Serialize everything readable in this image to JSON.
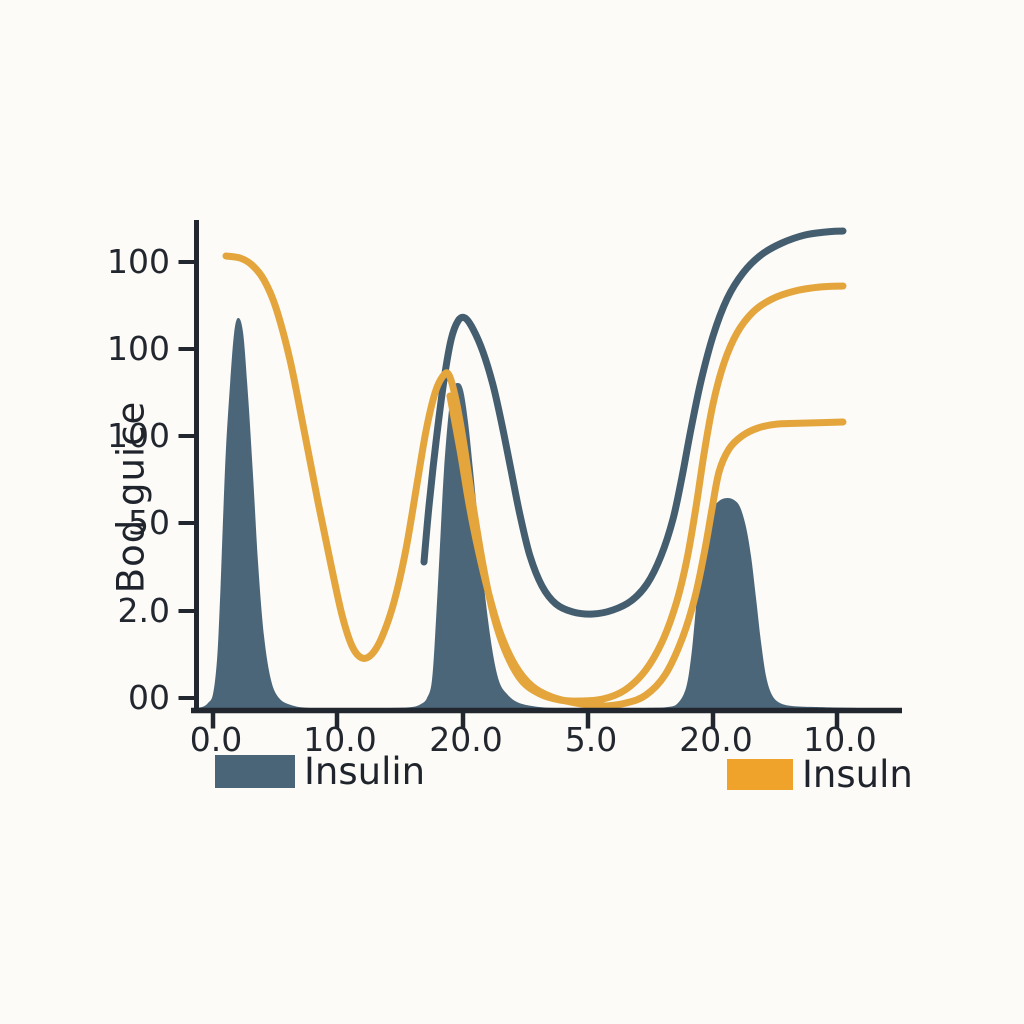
{
  "page": {
    "background": "#fcfbf7"
  },
  "chart_data": {
    "type": "area",
    "title": "",
    "ylabel": "Bod guice",
    "xlabel": "",
    "y_tick_labels": [
      "100",
      "100",
      "100",
      "50",
      "2.0",
      "00"
    ],
    "x_tick_labels": [
      "0.0",
      "10.0",
      "20.0",
      "5.0",
      "20.0",
      "10.0"
    ],
    "axis_color": "#22262e",
    "grid": false,
    "legend_position": "below-axis",
    "legend": [
      {
        "label": "Insulin",
        "swatch_color": "#4a6578"
      },
      {
        "label": "Insuln",
        "swatch_color": "#f0a32b"
      }
    ],
    "series": [
      {
        "name": "insulin-filled-area",
        "kind": "area",
        "color": "#4b6679",
        "points": [
          [
            193,
            708
          ],
          [
            202,
            707
          ],
          [
            208,
            703
          ],
          [
            213,
            694
          ],
          [
            217,
            660
          ],
          [
            220,
            600
          ],
          [
            223,
            520
          ],
          [
            226,
            448
          ],
          [
            230,
            385
          ],
          [
            234,
            334
          ],
          [
            238,
            318
          ],
          [
            243,
            332
          ],
          [
            248,
            395
          ],
          [
            253,
            475
          ],
          [
            258,
            562
          ],
          [
            264,
            636
          ],
          [
            271,
            680
          ],
          [
            279,
            698
          ],
          [
            291,
            705
          ],
          [
            310,
            708
          ],
          [
            350,
            708
          ],
          [
            390,
            708
          ],
          [
            412,
            707
          ],
          [
            421,
            704
          ],
          [
            427,
            698
          ],
          [
            432,
            680
          ],
          [
            436,
            620
          ],
          [
            440,
            545
          ],
          [
            444,
            470
          ],
          [
            449,
            410
          ],
          [
            453,
            388
          ],
          [
            458,
            383
          ],
          [
            463,
            390
          ],
          [
            468,
            422
          ],
          [
            473,
            470
          ],
          [
            479,
            532
          ],
          [
            485,
            595
          ],
          [
            492,
            648
          ],
          [
            499,
            681
          ],
          [
            507,
            694
          ],
          [
            517,
            702
          ],
          [
            532,
            706
          ],
          [
            555,
            708
          ],
          [
            600,
            708
          ],
          [
            645,
            708
          ],
          [
            668,
            707
          ],
          [
            678,
            703
          ],
          [
            686,
            688
          ],
          [
            691,
            658
          ],
          [
            695,
            618
          ],
          [
            699,
            575
          ],
          [
            704,
            538
          ],
          [
            711,
            512
          ],
          [
            719,
            501
          ],
          [
            727,
            498
          ],
          [
            734,
            500
          ],
          [
            740,
            507
          ],
          [
            746,
            527
          ],
          [
            751,
            556
          ],
          [
            756,
            598
          ],
          [
            761,
            642
          ],
          [
            766,
            676
          ],
          [
            772,
            695
          ],
          [
            780,
            703
          ],
          [
            792,
            706
          ],
          [
            815,
            707
          ],
          [
            860,
            708
          ],
          [
            900,
            708
          ]
        ]
      },
      {
        "name": "dark-blue-line",
        "kind": "line",
        "color": "#445e70",
        "width": 7,
        "points": [
          [
            424,
            562
          ],
          [
            429,
            506
          ],
          [
            436,
            442
          ],
          [
            444,
            380
          ],
          [
            451,
            340
          ],
          [
            458,
            321
          ],
          [
            465,
            318
          ],
          [
            473,
            329
          ],
          [
            483,
            352
          ],
          [
            493,
            385
          ],
          [
            502,
            425
          ],
          [
            511,
            470
          ],
          [
            520,
            515
          ],
          [
            530,
            556
          ],
          [
            542,
            586
          ],
          [
            556,
            604
          ],
          [
            573,
            612
          ],
          [
            593,
            614
          ],
          [
            613,
            610
          ],
          [
            631,
            601
          ],
          [
            647,
            584
          ],
          [
            661,
            556
          ],
          [
            673,
            519
          ],
          [
            682,
            477
          ],
          [
            691,
            429
          ],
          [
            701,
            381
          ],
          [
            713,
            336
          ],
          [
            727,
            299
          ],
          [
            743,
            273
          ],
          [
            761,
            255
          ],
          [
            782,
            243
          ],
          [
            805,
            235
          ],
          [
            826,
            232
          ],
          [
            843,
            231
          ]
        ]
      },
      {
        "name": "orange-line-upper",
        "kind": "line",
        "color": "#e3a53c",
        "width": 7,
        "points": [
          [
            226,
            256
          ],
          [
            240,
            258
          ],
          [
            252,
            265
          ],
          [
            264,
            280
          ],
          [
            276,
            308
          ],
          [
            290,
            360
          ],
          [
            304,
            430
          ],
          [
            318,
            502
          ],
          [
            331,
            565
          ],
          [
            342,
            615
          ],
          [
            352,
            646
          ],
          [
            362,
            658
          ],
          [
            372,
            654
          ],
          [
            382,
            637
          ],
          [
            394,
            602
          ],
          [
            406,
            549
          ],
          [
            417,
            484
          ],
          [
            426,
            431
          ],
          [
            435,
            393
          ],
          [
            443,
            376
          ],
          [
            449,
            375
          ],
          [
            456,
            400
          ],
          [
            464,
            445
          ],
          [
            473,
            505
          ],
          [
            483,
            565
          ],
          [
            494,
            617
          ],
          [
            507,
            655
          ],
          [
            522,
            681
          ],
          [
            540,
            694
          ],
          [
            560,
            700
          ],
          [
            580,
            701
          ],
          [
            603,
            699
          ],
          [
            625,
            690
          ],
          [
            645,
            671
          ],
          [
            662,
            642
          ],
          [
            676,
            604
          ],
          [
            687,
            559
          ],
          [
            696,
            507
          ],
          [
            704,
            454
          ],
          [
            713,
            404
          ],
          [
            724,
            363
          ],
          [
            737,
            333
          ],
          [
            753,
            312
          ],
          [
            772,
            299
          ],
          [
            795,
            291
          ],
          [
            820,
            287
          ],
          [
            843,
            286
          ]
        ]
      },
      {
        "name": "orange-line-lower",
        "kind": "line",
        "color": "#e3a53c",
        "width": 7,
        "points": [
          [
            450,
            396
          ],
          [
            460,
            450
          ],
          [
            469,
            504
          ],
          [
            478,
            549
          ],
          [
            488,
            591
          ],
          [
            500,
            632
          ],
          [
            515,
            665
          ],
          [
            532,
            686
          ],
          [
            552,
            697
          ],
          [
            576,
            703
          ],
          [
            602,
            706
          ],
          [
            626,
            703
          ],
          [
            646,
            695
          ],
          [
            665,
            675
          ],
          [
            682,
            639
          ],
          [
            695,
            597
          ],
          [
            705,
            549
          ],
          [
            712,
            509
          ],
          [
            719,
            472
          ],
          [
            729,
            449
          ],
          [
            742,
            436
          ],
          [
            758,
            428
          ],
          [
            778,
            424
          ],
          [
            808,
            423
          ],
          [
            843,
            422
          ]
        ]
      }
    ]
  }
}
